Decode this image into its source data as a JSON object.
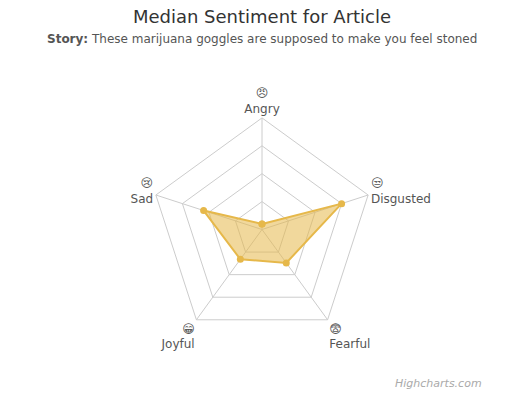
{
  "chart_data": {
    "type": "radar",
    "title": "Median Sentiment for Article",
    "subtitle": "Story: These marijuana goggles are supposed to make you feel stoned",
    "categories": [
      "Angry",
      "Disgusted",
      "Fearful",
      "Joyful",
      "Sad"
    ],
    "category_icons": [
      "😠",
      "😒",
      "😨",
      "😁",
      "😢"
    ],
    "values": [
      0.05,
      0.75,
      0.37,
      0.33,
      0.55
    ],
    "color": "#e6b84a",
    "ylim": [
      0,
      1.0
    ],
    "yticks": [
      0.25,
      0.5,
      0.75,
      1.0
    ],
    "grid": true,
    "tick_labels": false,
    "annotations": [
      "Highcharts.com"
    ]
  }
}
